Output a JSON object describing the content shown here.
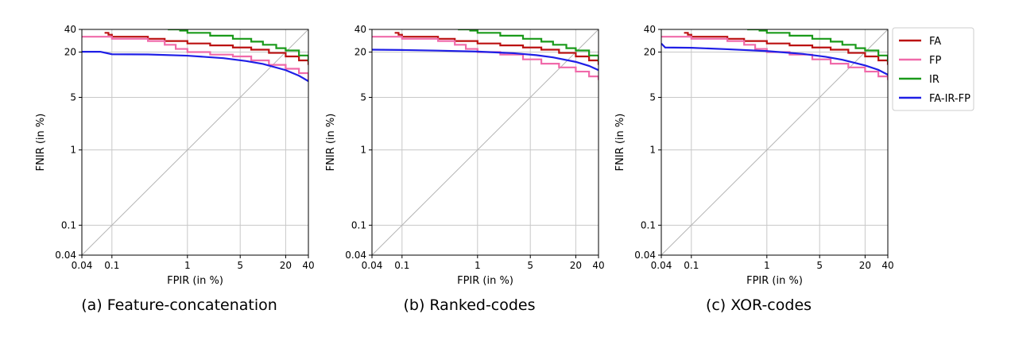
{
  "colors": {
    "FA": "#bb1111",
    "FP": "#f06aaa",
    "IR": "#1a9a1a",
    "FA-IR-FP": "#1f1fe6",
    "grid": "#c8c8c8",
    "diagonal": "#b4b4b4"
  },
  "legend": {
    "placement": "right of panel (c), top",
    "items": [
      "FA",
      "FP",
      "IR",
      "FA-IR-FP"
    ]
  },
  "chart_data": [
    {
      "type": "line",
      "caption": "(a) Feature-concatenation",
      "xlabel": "FPIR (in %)",
      "ylabel": "FNIR (in %)",
      "xscale": "log",
      "yscale": "log",
      "xlim": [
        0.04,
        40
      ],
      "ylim": [
        0.04,
        40
      ],
      "xticks": [
        "0.04",
        "0.1",
        "1",
        "5",
        "20",
        "40"
      ],
      "yticks": [
        "0.04",
        "0.1",
        "1",
        "5",
        "20",
        "40"
      ],
      "grid": true,
      "reference_line": "y = x",
      "series": [
        {
          "name": "FA",
          "step": true,
          "x": [
            0.08,
            0.09,
            0.1,
            0.3,
            0.5,
            1,
            2,
            4,
            7,
            12,
            20,
            30,
            40
          ],
          "y": [
            36,
            34,
            32,
            30,
            28,
            26,
            24.5,
            23,
            21.5,
            19.5,
            17.5,
            15.5,
            13.5
          ]
        },
        {
          "name": "FP",
          "step": true,
          "x": [
            0.04,
            0.1,
            0.3,
            0.5,
            0.7,
            1,
            2,
            4,
            7,
            12,
            20,
            30,
            40
          ],
          "y": [
            32,
            30,
            28,
            25,
            22,
            20,
            18.5,
            17.5,
            15.5,
            13.5,
            12,
            10.5,
            8.5
          ]
        },
        {
          "name": "IR",
          "step": true,
          "x": [
            0.55,
            0.8,
            1,
            2,
            4,
            7,
            10,
            15,
            20,
            30,
            40
          ],
          "y": [
            40,
            38.5,
            36,
            33,
            30,
            27.5,
            25,
            22.5,
            21,
            18,
            15
          ]
        },
        {
          "name": "FA-IR-FP",
          "step": false,
          "x": [
            0.04,
            0.07,
            0.1,
            0.3,
            1,
            3,
            6,
            10,
            20,
            30,
            40
          ],
          "y": [
            20.2,
            20.2,
            18.7,
            18.6,
            17.9,
            16.6,
            15.2,
            13.9,
            11.5,
            9.7,
            8.2
          ]
        }
      ]
    },
    {
      "type": "line",
      "caption": "(b) Ranked-codes",
      "xlabel": "FPIR (in %)",
      "ylabel": "FNIR (in %)",
      "xscale": "log",
      "yscale": "log",
      "xlim": [
        0.04,
        40
      ],
      "ylim": [
        0.04,
        40
      ],
      "xticks": [
        "0.04",
        "0.1",
        "1",
        "5",
        "20",
        "40"
      ],
      "yticks": [
        "0.04",
        "0.1",
        "1",
        "5",
        "20",
        "40"
      ],
      "grid": true,
      "reference_line": "y = x",
      "series": [
        {
          "name": "FA",
          "step": true,
          "x": [
            0.08,
            0.09,
            0.1,
            0.3,
            0.5,
            1,
            2,
            4,
            7,
            12,
            20,
            30,
            40
          ],
          "y": [
            36,
            34,
            32,
            30,
            28,
            26,
            24.5,
            23,
            21.5,
            19.5,
            17.5,
            15.5,
            13.5
          ]
        },
        {
          "name": "FP",
          "step": true,
          "x": [
            0.04,
            0.1,
            0.3,
            0.5,
            0.7,
            1,
            2,
            4,
            7,
            12,
            20,
            30,
            40
          ],
          "y": [
            32,
            30,
            28,
            25,
            22,
            20,
            18.5,
            16,
            14,
            12.5,
            11,
            9.5,
            8.5
          ]
        },
        {
          "name": "IR",
          "step": true,
          "x": [
            0.55,
            0.8,
            1,
            2,
            4,
            7,
            10,
            15,
            20,
            30,
            40
          ],
          "y": [
            40,
            38.5,
            36,
            33,
            30,
            27.5,
            25,
            22.5,
            21,
            18,
            15
          ]
        },
        {
          "name": "FA-IR-FP",
          "step": false,
          "x": [
            0.04,
            0.1,
            0.3,
            1,
            3,
            6,
            10,
            20,
            30,
            40
          ],
          "y": [
            21.5,
            21.3,
            20.9,
            20.3,
            19.3,
            18.2,
            17,
            14.8,
            13.1,
            11.5
          ]
        }
      ]
    },
    {
      "type": "line",
      "caption": "(c) XOR-codes",
      "xlabel": "FPIR (in %)",
      "ylabel": "FNIR (in %)",
      "xscale": "log",
      "yscale": "log",
      "xlim": [
        0.04,
        40
      ],
      "ylim": [
        0.04,
        40
      ],
      "xticks": [
        "0.04",
        "0.1",
        "1",
        "5",
        "20",
        "40"
      ],
      "yticks": [
        "0.04",
        "0.1",
        "1",
        "5",
        "20",
        "40"
      ],
      "grid": true,
      "reference_line": "y = x",
      "series": [
        {
          "name": "FA",
          "step": true,
          "x": [
            0.08,
            0.09,
            0.1,
            0.3,
            0.5,
            1,
            2,
            4,
            7,
            12,
            20,
            30,
            40
          ],
          "y": [
            36,
            34,
            32,
            30,
            28,
            26,
            24.5,
            23,
            21.5,
            19.5,
            17.5,
            15.5,
            13.5
          ]
        },
        {
          "name": "FP",
          "step": true,
          "x": [
            0.04,
            0.1,
            0.3,
            0.5,
            0.7,
            1,
            2,
            4,
            7,
            12,
            20,
            30,
            40
          ],
          "y": [
            32,
            30,
            28,
            25,
            22,
            20,
            18.5,
            16,
            14,
            12.5,
            11,
            9.5,
            8.5
          ]
        },
        {
          "name": "IR",
          "step": true,
          "x": [
            0.55,
            0.8,
            1,
            2,
            4,
            7,
            10,
            15,
            20,
            30,
            40
          ],
          "y": [
            40,
            38.5,
            36,
            33,
            30,
            27.5,
            25,
            22.5,
            21,
            18,
            15
          ]
        },
        {
          "name": "FA-IR-FP",
          "step": false,
          "x": [
            0.04,
            0.045,
            0.1,
            0.3,
            1,
            3,
            6,
            10,
            20,
            30,
            40
          ],
          "y": [
            26,
            23,
            22.8,
            21.8,
            20.6,
            18.9,
            17.3,
            15.8,
            13.3,
            11.6,
            10
          ]
        }
      ]
    }
  ]
}
